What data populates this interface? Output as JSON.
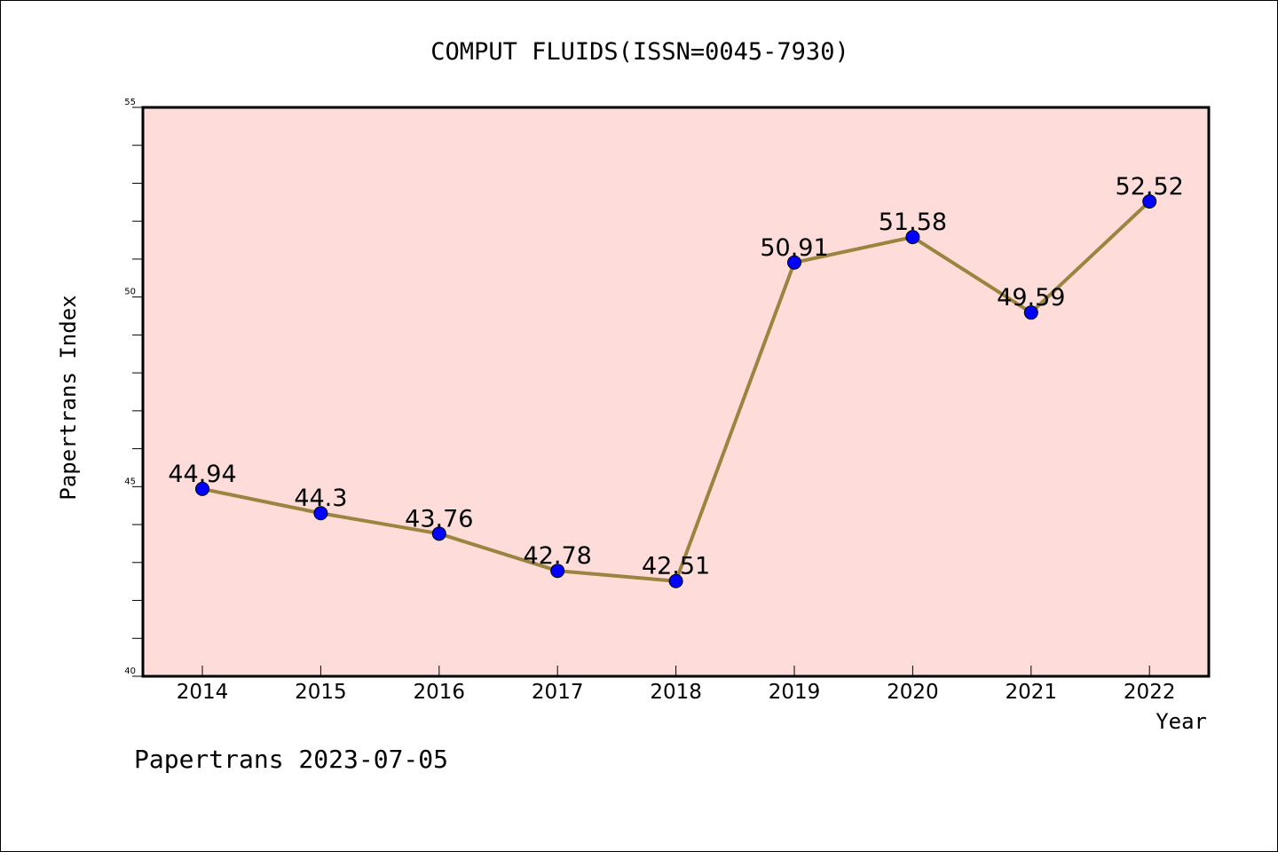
{
  "title": "COMPUT FLUIDS(ISSN=0045-7930)",
  "footer": "Papertrans 2023-07-05",
  "colors": {
    "plot_background": "#fddcd9",
    "line": "#9b843f",
    "marker": "#0000ff",
    "axis": "#000000"
  },
  "chart_data": {
    "type": "line",
    "title": "COMPUT FLUIDS(ISSN=0045-7930)",
    "xlabel": "Year",
    "ylabel": "Papertrans Index",
    "categories": [
      "2014",
      "2015",
      "2016",
      "2017",
      "2018",
      "2019",
      "2020",
      "2021",
      "2022"
    ],
    "series": [
      {
        "values": [
          44.94,
          44.3,
          43.76,
          42.78,
          42.51,
          50.91,
          51.58,
          49.59,
          52.52
        ],
        "data_labels": [
          "44.94",
          "44.3",
          "43.76",
          "42.78",
          "42.51",
          "50.91",
          "51.58",
          "49.59",
          "52.52"
        ]
      }
    ],
    "ylim": [
      40,
      55
    ],
    "y_major_ticks": [
      40,
      45,
      50,
      55
    ],
    "y_tick_labels": [
      "40",
      "45",
      "50",
      "55"
    ],
    "y_minor_step": 1,
    "grid": false,
    "legend": "none",
    "marker": "circle"
  }
}
